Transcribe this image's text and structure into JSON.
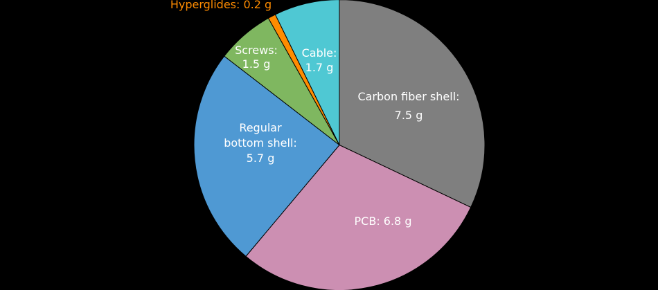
{
  "chart_data": {
    "type": "pie",
    "title": "",
    "unit": "g",
    "start_angle_deg": 0,
    "direction": "clockwise",
    "background": "#000000",
    "slices": [
      {
        "label": "Carbon fiber shell",
        "value": 7.5,
        "value_text": "7.5 g",
        "color": "#7f7f7f",
        "text_color": "#ffffff",
        "label_layout": "two-line"
      },
      {
        "label": "PCB",
        "value": 6.8,
        "value_text": "6.8 g",
        "color": "#cc8fb2",
        "text_color": "#ffffff",
        "label_layout": "inline"
      },
      {
        "label": "Regular bottom shell",
        "value": 5.7,
        "value_text": "5.7 g",
        "color": "#4f99d3",
        "text_color": "#ffffff",
        "label_layout": "wrapped"
      },
      {
        "label": "Screws",
        "value": 1.5,
        "value_text": "1.5 g",
        "color": "#7fb760",
        "text_color": "#ffffff",
        "label_layout": "two-line"
      },
      {
        "label": "Hyperglides",
        "value": 0.2,
        "value_text": "0.2 g",
        "color": "#ff8c00",
        "text_color": "#ff8c00",
        "label_layout": "outside"
      },
      {
        "label": "Cable",
        "value": 1.7,
        "value_text": "1.7 g",
        "color": "#4fc8d3",
        "text_color": "#ffffff",
        "label_layout": "two-line"
      }
    ]
  }
}
